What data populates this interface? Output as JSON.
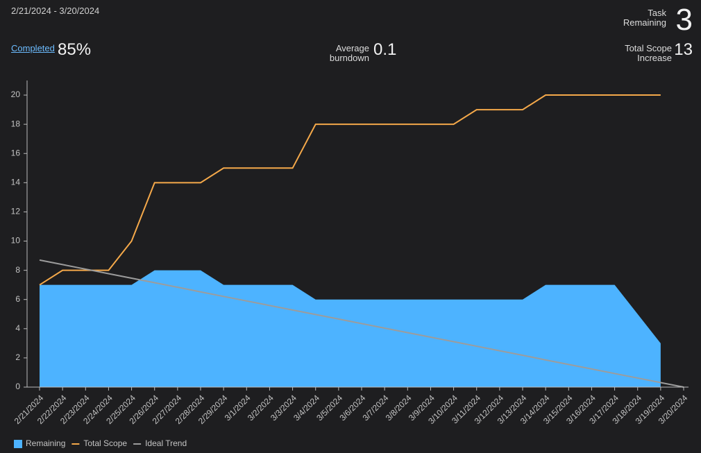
{
  "header": {
    "date_range": "2/21/2024 - 3/20/2024",
    "task_remaining": {
      "label": "Task Remaining",
      "value": "3"
    },
    "completed": {
      "label": "Completed",
      "value": "85%"
    },
    "average_burndown": {
      "label": "Average burndown",
      "value": "0.1"
    },
    "total_scope_increase": {
      "label": "Total Scope Increase",
      "value": "13"
    }
  },
  "chart_data": {
    "type": "area_line",
    "categories": [
      "2/21/2024",
      "2/22/2024",
      "2/23/2024",
      "2/24/2024",
      "2/25/2024",
      "2/26/2024",
      "2/27/2024",
      "2/28/2024",
      "2/29/2024",
      "3/1/2024",
      "3/2/2024",
      "3/3/2024",
      "3/4/2024",
      "3/5/2024",
      "3/6/2024",
      "3/7/2024",
      "3/8/2024",
      "3/9/2024",
      "3/10/2024",
      "3/11/2024",
      "3/12/2024",
      "3/13/2024",
      "3/14/2024",
      "3/15/2024",
      "3/16/2024",
      "3/17/2024",
      "3/18/2024",
      "3/19/2024",
      "3/20/2024"
    ],
    "series": [
      {
        "name": "Remaining",
        "kind": "area",
        "color": "#4db3ff",
        "values": [
          7,
          7,
          7,
          7,
          7,
          8,
          8,
          8,
          7,
          7,
          7,
          7,
          6,
          6,
          6,
          6,
          6,
          6,
          6,
          6,
          6,
          6,
          7,
          7,
          7,
          7,
          5,
          3,
          null
        ]
      },
      {
        "name": "Total Scope",
        "kind": "line",
        "color": "#f5a94a",
        "values": [
          7,
          8,
          8,
          8,
          10,
          14,
          14,
          14,
          15,
          15,
          15,
          15,
          18,
          18,
          18,
          18,
          18,
          18,
          18,
          19,
          19,
          19,
          20,
          20,
          20,
          20,
          20,
          20,
          null
        ]
      },
      {
        "name": "Ideal Trend",
        "kind": "line",
        "color": "#9c9c9c",
        "values": [
          8.7,
          8.39,
          8.08,
          7.77,
          7.46,
          7.15,
          6.84,
          6.52,
          6.21,
          5.9,
          5.59,
          5.28,
          4.97,
          4.66,
          4.35,
          4.04,
          3.73,
          3.42,
          3.11,
          2.8,
          2.49,
          2.18,
          1.86,
          1.55,
          1.24,
          0.93,
          0.62,
          0.31,
          0
        ]
      }
    ],
    "ylim": [
      0,
      21
    ],
    "yticks": [
      0,
      2,
      4,
      6,
      8,
      10,
      12,
      14,
      16,
      18,
      20
    ],
    "legend": "bottom-left"
  }
}
